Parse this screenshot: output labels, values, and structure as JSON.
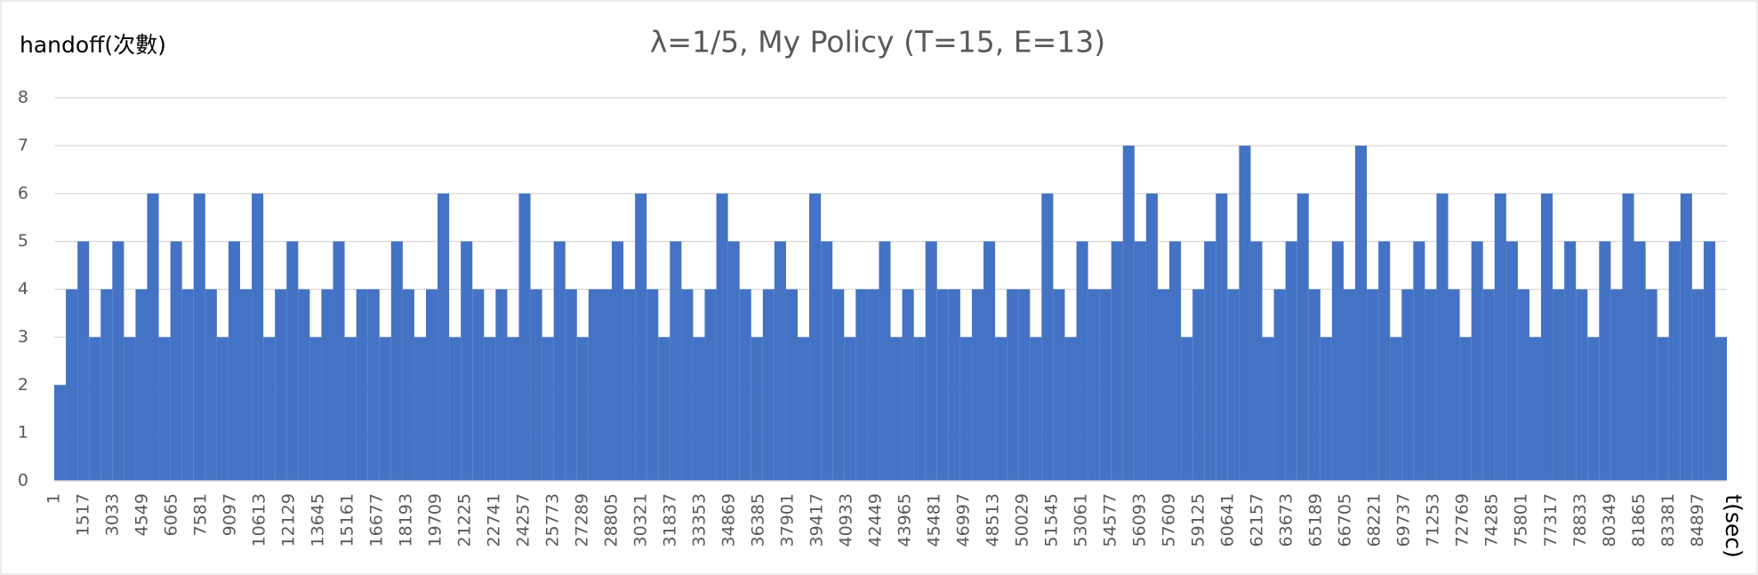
{
  "chart_data": {
    "type": "bar",
    "title": "λ=1/5, My Policy (T=15, E=13)",
    "y_label": "handoff(次數)",
    "x_label": "t(sec)",
    "x": [
      1,
      601,
      1201,
      1801,
      2401,
      3001,
      3601,
      4201,
      4801,
      5401,
      6001,
      6601,
      7201,
      7801,
      8401,
      9001,
      9601,
      10201,
      10801,
      11401,
      12001,
      12601,
      13201,
      13801,
      14401,
      15001,
      15601,
      16201,
      16801,
      17401,
      18001,
      18601,
      19201,
      19801,
      20401,
      21001,
      21601,
      22201,
      22801,
      23401,
      24001,
      24601,
      25201,
      25801,
      26401,
      27001,
      27601,
      28201,
      28801,
      29401,
      30001,
      30601,
      31201,
      31801,
      32401,
      33001,
      33601,
      34201,
      34801,
      35401,
      36001,
      36601,
      37201,
      37801,
      38401,
      39001,
      39601,
      40201,
      40801,
      41401,
      42001,
      42601,
      43201,
      43801,
      44401,
      45001,
      45601,
      46201,
      46801,
      47401,
      48001,
      48601,
      49201,
      49801,
      50401,
      51001,
      51601,
      52201,
      52801,
      53401,
      54001,
      54601,
      55201,
      55801,
      56401,
      57001,
      57601,
      58201,
      58801,
      59401,
      60001,
      60601,
      61201,
      61801,
      62401,
      63001,
      63601,
      64201,
      64801,
      65401,
      66001,
      66601,
      67201,
      67801,
      68401,
      69001,
      69601,
      70201,
      70801,
      71401,
      72001,
      72601,
      73201,
      73801,
      74401,
      75001,
      75601,
      76201,
      76801,
      77401,
      78001,
      78601,
      79201,
      79801,
      80401,
      81001,
      81601,
      82201,
      82801,
      83401,
      84001,
      84601,
      85201,
      85801
    ],
    "values": [
      2,
      4,
      5,
      3,
      4,
      5,
      3,
      4,
      6,
      3,
      5,
      4,
      6,
      4,
      3,
      5,
      4,
      6,
      3,
      4,
      5,
      4,
      3,
      4,
      5,
      3,
      4,
      4,
      3,
      5,
      4,
      3,
      4,
      6,
      3,
      5,
      4,
      3,
      4,
      3,
      6,
      4,
      3,
      5,
      4,
      3,
      4,
      4,
      5,
      4,
      6,
      4,
      3,
      5,
      4,
      3,
      4,
      6,
      5,
      4,
      3,
      4,
      5,
      4,
      3,
      6,
      5,
      4,
      3,
      4,
      4,
      5,
      3,
      4,
      3,
      5,
      4,
      4,
      3,
      4,
      5,
      3,
      4,
      4,
      3,
      6,
      4,
      3,
      5,
      4,
      4,
      5,
      7,
      5,
      6,
      4,
      5,
      3,
      4,
      5,
      6,
      4,
      7,
      5,
      3,
      4,
      5,
      6,
      4,
      3,
      5,
      4,
      7,
      4,
      5,
      3,
      4,
      5,
      4,
      6,
      4,
      3,
      5,
      4,
      6,
      5,
      4,
      3,
      6,
      4,
      5,
      4,
      3,
      5,
      4,
      6,
      5,
      4,
      3,
      5,
      6,
      4,
      5,
      3
    ],
    "color": "#4472c4",
    "xlim": [
      1,
      86400
    ],
    "xticks": [
      1,
      1517,
      3033,
      4549,
      6065,
      7581,
      9097,
      10613,
      12129,
      13645,
      15161,
      16677,
      18193,
      19709,
      21225,
      22741,
      24257,
      25773,
      27289,
      28805,
      30321,
      31837,
      33353,
      34869,
      36385,
      37901,
      39417,
      40933,
      42449,
      43965,
      45481,
      46997,
      48513,
      50029,
      51545,
      53061,
      54577,
      56093,
      57609,
      59125,
      60641,
      62157,
      63673,
      65189,
      66705,
      68221,
      69737,
      71253,
      72769,
      74285,
      75801,
      77317,
      78833,
      80349,
      81865,
      83381,
      84897
    ],
    "ylim": [
      0,
      8
    ],
    "yticks": [
      0,
      1,
      2,
      3,
      4,
      5,
      6,
      7,
      8
    ],
    "grid": true
  }
}
